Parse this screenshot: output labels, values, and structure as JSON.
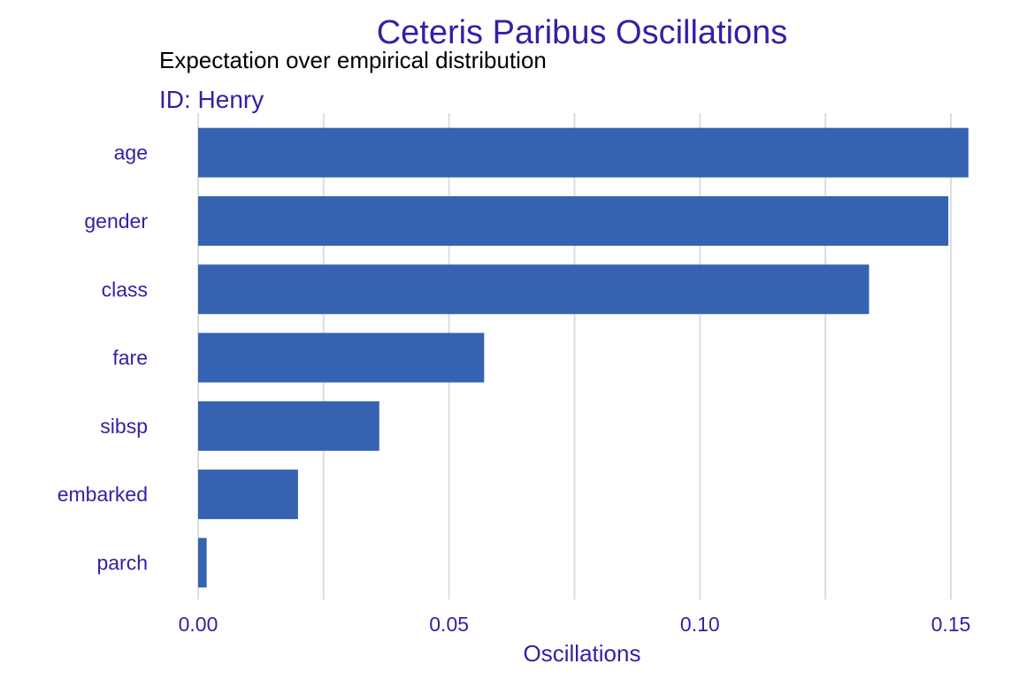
{
  "colors": {
    "bar": "#3563b1",
    "text": "#371ea3",
    "subtitle": "#000000",
    "grid": "#dddddd",
    "background": "#ffffff"
  },
  "chart_data": {
    "type": "bar",
    "orientation": "horizontal",
    "title": "Ceteris Paribus Oscillations",
    "subtitle": "Expectation over empirical distribution",
    "facet_label": "ID: Henry",
    "xlabel": "Oscillations",
    "categories": [
      "age",
      "gender",
      "class",
      "fare",
      "sibsp",
      "embarked",
      "parch"
    ],
    "values": [
      0.1535,
      0.1495,
      0.1337,
      0.057,
      0.0361,
      0.0199,
      0.0017
    ],
    "xlim": [
      0,
      0.15
    ],
    "xticks": [
      0.0,
      0.05,
      0.1,
      0.15
    ],
    "xtick_labels": [
      "0.00",
      "0.05",
      "0.10",
      "0.15"
    ],
    "grid": "vertical",
    "legend": "none"
  }
}
